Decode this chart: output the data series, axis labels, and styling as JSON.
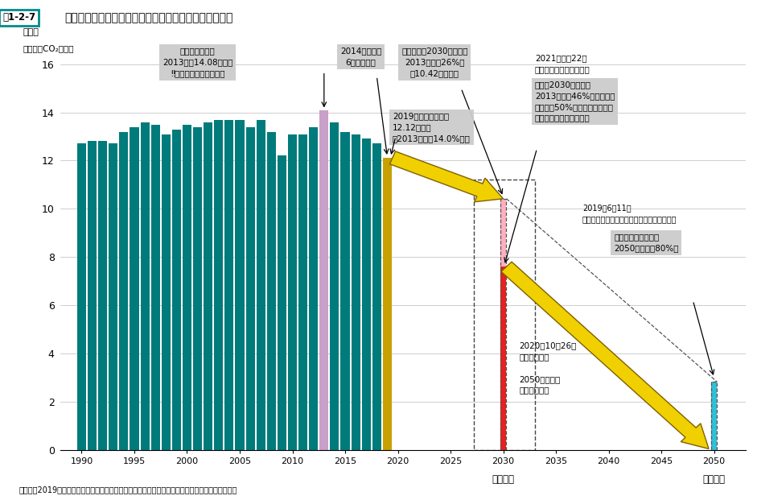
{
  "title_box": "囱1-2-7",
  "title_text": "我が国の温室効果ガス削減の中期目標と長期目標の推移",
  "ylabel_line1": "排出量",
  "ylabel_line2": "（億トンCO₂換算）",
  "source": "資料：「2019年度の温室効果ガス排出量（確報値）」及び「地球温暖化対策計画」より環境省作成",
  "bar_years": [
    1990,
    1991,
    1992,
    1993,
    1994,
    1995,
    1996,
    1997,
    1998,
    1999,
    2000,
    2001,
    2002,
    2003,
    2004,
    2005,
    2006,
    2007,
    2008,
    2009,
    2010,
    2011,
    2012,
    2013,
    2014,
    2015,
    2016,
    2017,
    2018,
    2019
  ],
  "bar_values": [
    12.7,
    12.8,
    12.8,
    12.7,
    13.2,
    13.4,
    13.6,
    13.5,
    13.1,
    13.3,
    13.5,
    13.4,
    13.6,
    13.7,
    13.7,
    13.7,
    13.4,
    13.7,
    13.2,
    12.2,
    13.1,
    13.1,
    13.4,
    14.08,
    13.6,
    13.2,
    13.1,
    12.9,
    12.7,
    12.12
  ],
  "teal_color": "#007B7B",
  "purple_bar_year": 2013,
  "purple_bar_value": 14.08,
  "purple_color": "#C8A0C8",
  "gold_bar_year": 2019,
  "gold_bar_value": 12.12,
  "gold_color": "#C8A000",
  "red_bar_year": 2030,
  "red_bar_value": 7.6,
  "red_color": "#E82020",
  "pink_bar_year": 2030,
  "pink_bar_value": 10.42,
  "pink_color": "#FFB0C0",
  "cyan_bar_year": 2050,
  "cyan_bar_value": 2.82,
  "cyan_color": "#30C0D8",
  "arrow_yellow": "#F0D000",
  "arrow_yellow_edge": "#A08000",
  "xlim": [
    1988.0,
    2053.0
  ],
  "ylim": [
    0,
    17
  ],
  "yticks": [
    0,
    2,
    4,
    6,
    8,
    10,
    12,
    14,
    16
  ],
  "xticks_hist": [
    1990,
    1995,
    2000,
    2005,
    2010,
    2015,
    2020
  ],
  "xticks_future": [
    2025,
    2030,
    2035,
    2040,
    2045,
    2050
  ],
  "bg": "#FFFFFF",
  "ann_bg": "#CCCCCC",
  "box_label1": "基準年度排出量\n2013年度14.08億トン\n‼削減目標決定時の数値",
  "box_label2": "2014年度以降\n6年連続削減",
  "box_label3": "これまでの2030年度目標\n2013年度比26%減\n（10.42億トン）",
  "box_label4": "2019年度（確報値）\n12.12億トン\n「2013年度比14.0%減」",
  "box_label5": "新たな2030年度目標\n2013年度比46%減を目指す\nさらに、50%の高みに向けて、\n挑戦を続けてまいります",
  "box_label6": "これまでの長期目標\n2050年までに80%減",
  "text_2021": "2021年４月22日\n温対本部・気候サミット",
  "text_2019jun": "2019年6月11日\nパリ協定に基づく成長戦略としての長期戦略",
  "text_2020oct": "2020年10月26日\n総理所信演説",
  "text_zero": "2050年までに\n排出実質ゼロ",
  "text_chuuki": "中期目標",
  "text_chouki": "長期目標"
}
